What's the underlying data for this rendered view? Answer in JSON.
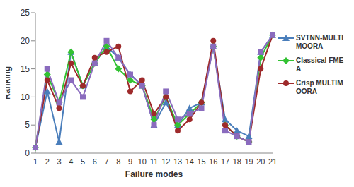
{
  "chart_data": {
    "type": "line",
    "x_label": "Failure modes",
    "y_label": "Ranking",
    "categories": [
      "1",
      "2",
      "3",
      "4",
      "5",
      "6",
      "7",
      "8",
      "9",
      "10",
      "11",
      "12",
      "13",
      "14",
      "15",
      "16",
      "17",
      "18",
      "19",
      "20",
      "21"
    ],
    "ylim": [
      0,
      25
    ],
    "yticks": [
      0,
      5,
      10,
      15,
      20,
      25
    ],
    "grid": false,
    "legend": "right",
    "series": [
      {
        "name": "SVTNN-MULTIMOORA",
        "color": "#4a7ebb",
        "marker": "triangle",
        "values": [
          1,
          11,
          2,
          18,
          12,
          16,
          19,
          17,
          14,
          12,
          5,
          9,
          5,
          8,
          9,
          19,
          6,
          4,
          3,
          18,
          21
        ]
      },
      {
        "name": "Classical FMEA",
        "color": "#33c233",
        "marker": "diamond",
        "values": [
          1,
          14,
          9,
          18,
          12,
          16,
          19,
          15,
          13,
          12,
          6,
          10,
          5,
          7,
          9,
          19,
          5,
          3,
          2,
          17,
          21
        ]
      },
      {
        "name": "Crisp MULTIMOORA",
        "color": "#9e2a2b",
        "marker": "circle",
        "values": [
          1,
          13,
          8,
          16,
          12,
          17,
          18,
          19,
          11,
          13,
          7,
          10,
          4,
          6,
          9,
          20,
          5,
          3,
          2,
          15,
          21
        ]
      },
      {
        "color": "#8a6bbe",
        "marker": "square",
        "values": [
          1,
          15,
          9,
          13,
          10,
          16,
          20,
          17,
          14,
          12,
          5,
          11,
          6,
          7,
          8,
          19,
          4,
          3,
          2,
          18,
          21
        ]
      }
    ]
  }
}
